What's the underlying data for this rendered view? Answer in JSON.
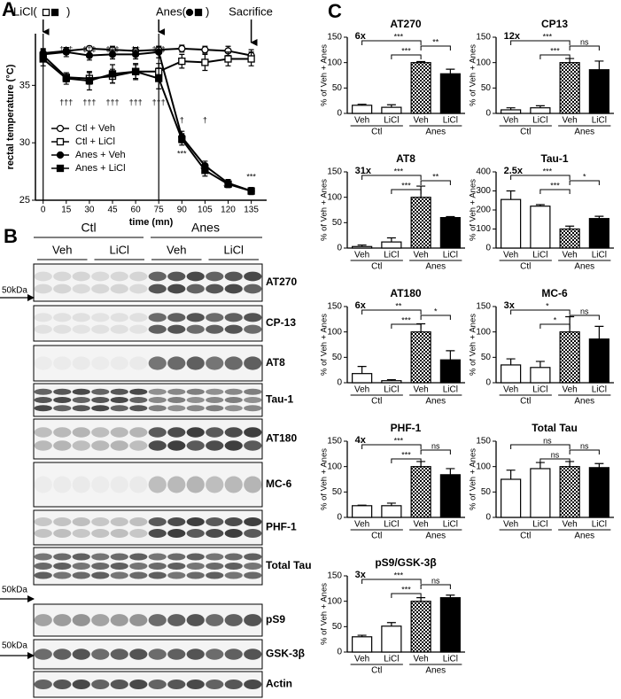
{
  "panel_labels": [
    "A",
    "B",
    "C"
  ],
  "chart_data": [
    {
      "type": "line",
      "xlabel": "time (mn)",
      "ylabel": "rectal temperature (°C)",
      "x": [
        0,
        15,
        30,
        45,
        60,
        75,
        90,
        105,
        120,
        135
      ],
      "xlim": [
        -5,
        145
      ],
      "xticks": [
        0,
        15,
        30,
        45,
        60,
        75,
        90,
        105,
        120,
        135
      ],
      "ylim": [
        25,
        39.5
      ],
      "yticks": [
        25,
        30,
        35
      ],
      "series": [
        {
          "name": "Ctl + Veh",
          "marker": "open-circle",
          "color": "#000000",
          "values": [
            37.8,
            38.0,
            38.2,
            38.1,
            38.0,
            38.1,
            38.2,
            38.1,
            38.0,
            37.6
          ],
          "errors": [
            0.4,
            0.3,
            0.2,
            0.3,
            0.3,
            0.3,
            0.3,
            0.3,
            0.4,
            0.5
          ]
        },
        {
          "name": "Ctl + LiCl",
          "marker": "open-square",
          "color": "#000000",
          "values": [
            37.6,
            35.7,
            35.6,
            35.8,
            36.2,
            36.2,
            37.1,
            37.0,
            37.3,
            37.3
          ],
          "errors": [
            0.5,
            0.4,
            0.5,
            0.6,
            0.6,
            0.7,
            0.6,
            0.7,
            0.6,
            0.6
          ]
        },
        {
          "name": "Anes + Veh",
          "marker": "filled-circle",
          "color": "#000000",
          "values": [
            37.7,
            37.9,
            37.6,
            37.7,
            37.7,
            37.9,
            30.5,
            28.0,
            26.5,
            25.8
          ],
          "errors": [
            0.4,
            0.4,
            0.4,
            0.4,
            0.4,
            0.5,
            0.5,
            0.4,
            0.3,
            0.3
          ]
        },
        {
          "name": "Anes + LiCl",
          "marker": "filled-square",
          "color": "#000000",
          "values": [
            37.3,
            35.6,
            35.4,
            36.0,
            36.2,
            35.6,
            30.3,
            27.6,
            26.4,
            25.8
          ],
          "errors": [
            0.6,
            0.5,
            0.8,
            0.8,
            0.7,
            0.9,
            0.5,
            0.5,
            0.3,
            0.3
          ]
        }
      ],
      "annotations": [
        "LiCl(",
        ")",
        "Anes(",
        ")",
        "Sacrifice",
        "‡‡‡",
        "‡‡‡",
        "‡‡‡",
        "‡‡",
        "‡‡‡",
        "†††",
        "†††",
        "†††",
        "†††",
        "†††",
        "†",
        "†",
        "***",
        "***",
        "***",
        "***"
      ]
    },
    {
      "type": "bar",
      "title": "AT270",
      "ylabel": "% of Veh + Anes",
      "categories": [
        "Veh",
        "LiCl",
        "Veh",
        "LiCl"
      ],
      "groups": [
        "Ctl",
        "Anes"
      ],
      "fills": [
        "white",
        "white",
        "checkered",
        "black"
      ],
      "values": [
        16,
        12,
        100,
        78
      ],
      "errors": [
        2,
        5,
        2,
        9
      ],
      "ylim": [
        0,
        150
      ],
      "yticks": [
        0,
        50,
        100,
        150
      ],
      "fold": "6x",
      "significance": [
        "***",
        "***",
        "**"
      ]
    },
    {
      "type": "bar",
      "title": "CP13",
      "ylabel": "% of Veh + Anes",
      "categories": [
        "Veh",
        "LiCl",
        "Veh",
        "LiCl"
      ],
      "groups": [
        "Ctl",
        "Anes"
      ],
      "fills": [
        "white",
        "white",
        "checkered",
        "black"
      ],
      "values": [
        7,
        11,
        100,
        86
      ],
      "errors": [
        4,
        4,
        8,
        17
      ],
      "ylim": [
        0,
        150
      ],
      "yticks": [
        0,
        50,
        100,
        150
      ],
      "fold": "12x",
      "significance": [
        "***",
        "***",
        "ns"
      ]
    },
    {
      "type": "bar",
      "title": "AT8",
      "ylabel": "% of Veh + Anes",
      "categories": [
        "Veh",
        "LiCl",
        "Veh",
        "LiCl"
      ],
      "groups": [
        "Ctl",
        "Anes"
      ],
      "fills": [
        "white",
        "white",
        "checkered",
        "black"
      ],
      "values": [
        3,
        12,
        100,
        60
      ],
      "errors": [
        3,
        8,
        22,
        2
      ],
      "ylim": [
        0,
        150
      ],
      "yticks": [
        0,
        50,
        100,
        150
      ],
      "fold": "31x",
      "significance": [
        "***",
        "***",
        "**"
      ]
    },
    {
      "type": "bar",
      "title": "Tau-1",
      "ylabel": "% of Veh + Anes",
      "categories": [
        "Veh",
        "LiCl",
        "Veh",
        "LiCl"
      ],
      "groups": [
        "Ctl",
        "Anes"
      ],
      "fills": [
        "white",
        "white",
        "checkered",
        "black"
      ],
      "values": [
        255,
        220,
        100,
        155
      ],
      "errors": [
        45,
        8,
        15,
        12
      ],
      "ylim": [
        0,
        400
      ],
      "yticks": [
        0,
        100,
        200,
        300,
        400
      ],
      "fold": "2.5x",
      "significance": [
        "***",
        "***",
        "*"
      ]
    },
    {
      "type": "bar",
      "title": "AT180",
      "ylabel": "% of Veh + Anes",
      "categories": [
        "Veh",
        "LiCl",
        "Veh",
        "LiCl"
      ],
      "groups": [
        "Ctl",
        "Anes"
      ],
      "fills": [
        "white",
        "white",
        "checkered",
        "black"
      ],
      "values": [
        18,
        4,
        100,
        45
      ],
      "errors": [
        14,
        2,
        16,
        18
      ],
      "ylim": [
        0,
        150
      ],
      "yticks": [
        0,
        50,
        100,
        150
      ],
      "fold": "6x",
      "significance": [
        "**",
        "***",
        "*"
      ]
    },
    {
      "type": "bar",
      "title": "MC-6",
      "ylabel": "% of Veh + Anes",
      "categories": [
        "Veh",
        "LiCl",
        "Veh",
        "LiCl"
      ],
      "groups": [
        "Ctl",
        "Anes"
      ],
      "fills": [
        "white",
        "white",
        "checkered",
        "black"
      ],
      "values": [
        35,
        30,
        100,
        86
      ],
      "errors": [
        12,
        12,
        30,
        25
      ],
      "ylim": [
        0,
        150
      ],
      "yticks": [
        0,
        50,
        100,
        150
      ],
      "fold": "3x",
      "significance": [
        "*",
        "*",
        "ns"
      ]
    },
    {
      "type": "bar",
      "title": "PHF-1",
      "ylabel": "% of Veh + Anes",
      "categories": [
        "Veh",
        "LiCl",
        "Veh",
        "LiCl"
      ],
      "groups": [
        "Ctl",
        "Anes"
      ],
      "fills": [
        "white",
        "white",
        "checkered",
        "black"
      ],
      "values": [
        23,
        23,
        100,
        84
      ],
      "errors": [
        1,
        5,
        10,
        12
      ],
      "ylim": [
        0,
        150
      ],
      "yticks": [
        0,
        50,
        100,
        150
      ],
      "fold": "4x",
      "significance": [
        "***",
        "***",
        "ns"
      ]
    },
    {
      "type": "bar",
      "title": "Total Tau",
      "ylabel": "% of Veh + Anes",
      "categories": [
        "Veh",
        "LiCl",
        "Veh",
        "LiCl"
      ],
      "groups": [
        "Ctl",
        "Anes"
      ],
      "fills": [
        "white",
        "white",
        "checkered",
        "black"
      ],
      "values": [
        75,
        96,
        100,
        98
      ],
      "errors": [
        18,
        12,
        10,
        8
      ],
      "ylim": [
        0,
        150
      ],
      "yticks": [
        0,
        50,
        100,
        150
      ],
      "significance": [
        "ns",
        "ns",
        "ns"
      ]
    },
    {
      "type": "bar",
      "title": "pS9/GSK-3β",
      "ylabel": "% of Veh + Anes",
      "categories": [
        "Veh",
        "LiCl",
        "Veh",
        "LiCl"
      ],
      "groups": [
        "Ctl",
        "Anes"
      ],
      "fills": [
        "white",
        "white",
        "checkered",
        "black"
      ],
      "values": [
        30,
        51,
        100,
        107
      ],
      "errors": [
        3,
        7,
        7,
        5
      ],
      "ylim": [
        0,
        150
      ],
      "yticks": [
        0,
        50,
        100,
        150
      ],
      "fold": "3x",
      "significance": [
        "***",
        "***",
        "ns"
      ]
    }
  ],
  "blot": {
    "groups": [
      "Ctl",
      "Anes"
    ],
    "treatments": [
      "Veh",
      "LiCl",
      "Veh",
      "LiCl"
    ],
    "rows": [
      "AT270",
      "CP-13",
      "AT8",
      "Tau-1",
      "AT180",
      "MC-6",
      "PHF-1",
      "Total Tau",
      "pS9",
      "GSK-3β",
      "Actin"
    ],
    "marker": "50kDa"
  }
}
